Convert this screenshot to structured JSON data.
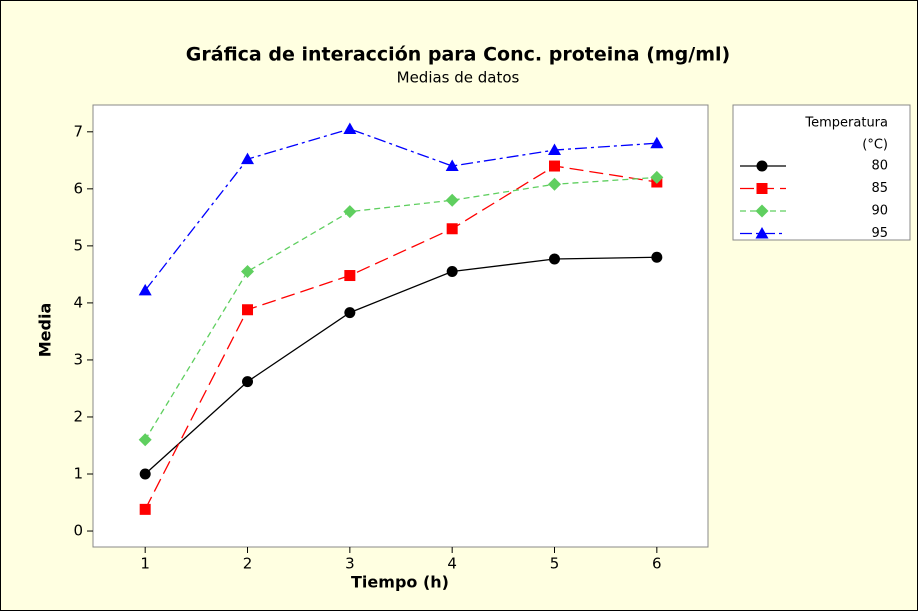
{
  "chart_data": {
    "type": "line",
    "title": "Gráfica de interacción para Conc. proteina (mg/ml)",
    "subtitle": "Medias de datos",
    "x_label": "Tiempo (h)",
    "y_label": "Media",
    "legend_title": [
      "Temperatura",
      "(°C)"
    ],
    "legend_position": "right",
    "x": [
      1,
      2,
      3,
      4,
      5,
      6
    ],
    "xlim": [
      0.49,
      6.5
    ],
    "xticks": [
      1,
      2,
      3,
      4,
      5,
      6
    ],
    "ylim": [
      -0.28,
      7.47
    ],
    "yticks": [
      0,
      1,
      2,
      3,
      4,
      5,
      6,
      7
    ],
    "series": [
      {
        "name": "80",
        "color": "#000000",
        "marker": "circle",
        "dash": "solid",
        "values": [
          1.0,
          2.62,
          3.83,
          4.55,
          4.77,
          4.8
        ]
      },
      {
        "name": "85",
        "color": "#ff0000",
        "marker": "square",
        "dash": "long",
        "values": [
          0.38,
          3.88,
          4.48,
          5.3,
          6.4,
          6.12
        ]
      },
      {
        "name": "90",
        "color": "#5fcf5f",
        "marker": "diamond",
        "dash": "short",
        "values": [
          1.6,
          4.55,
          5.6,
          5.8,
          6.08,
          6.2
        ]
      },
      {
        "name": "95",
        "color": "#0000ff",
        "marker": "triangle",
        "dash": "dashdot",
        "values": [
          4.22,
          6.52,
          7.05,
          6.4,
          6.68,
          6.8
        ]
      }
    ]
  }
}
